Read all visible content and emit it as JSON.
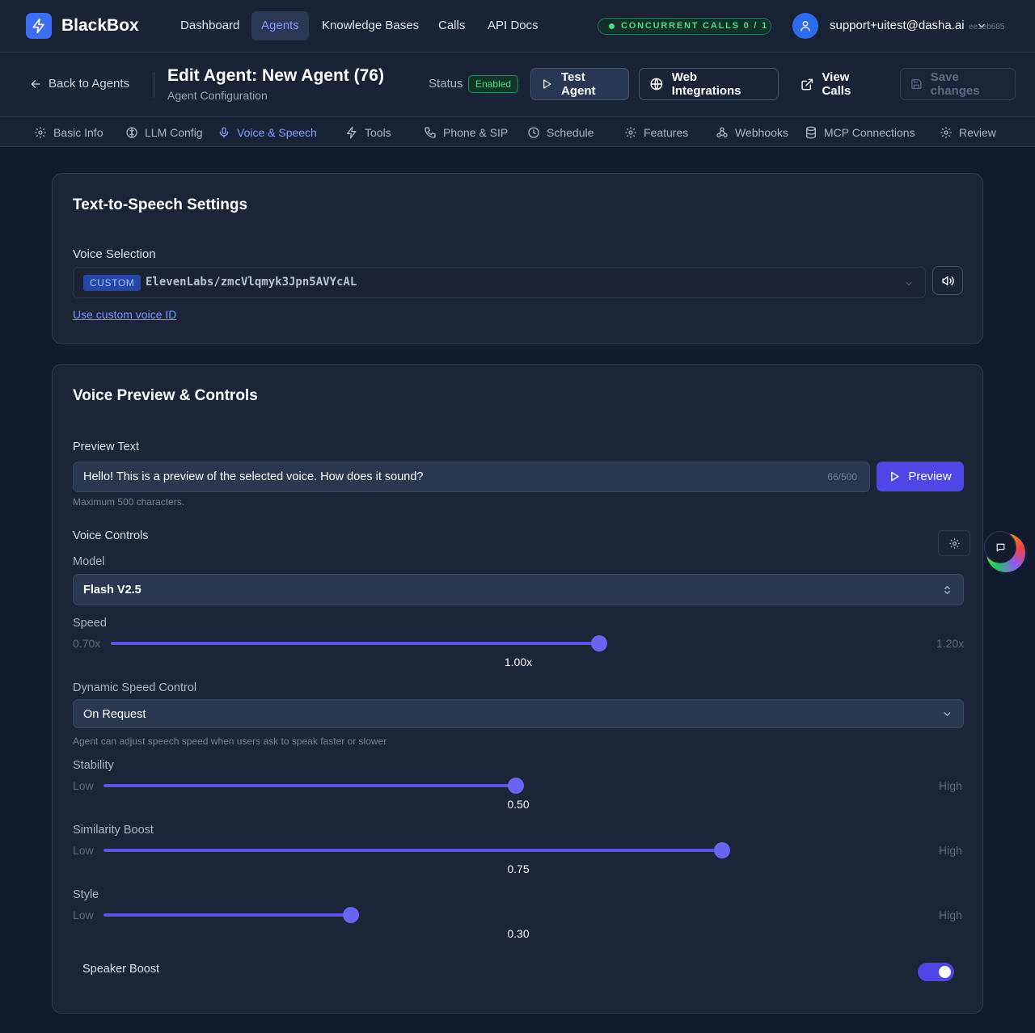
{
  "app": {
    "brand": "BlackBox"
  },
  "nav": {
    "items": [
      {
        "label": "Dashboard",
        "active": false
      },
      {
        "label": "Agents",
        "active": true
      },
      {
        "label": "Knowledge Bases",
        "active": false
      },
      {
        "label": "Calls",
        "active": false
      },
      {
        "label": "API Docs",
        "active": false
      }
    ],
    "concurrent_calls": "CONCURRENT CALLS 0 / 1",
    "user_email": "support+uitest@dasha.ai",
    "user_id": "ee1eb685"
  },
  "header": {
    "back_label": "Back to Agents",
    "title": "Edit Agent: New Agent (76)",
    "subtitle": "Agent Configuration",
    "status_label": "Status",
    "status_value": "Enabled",
    "test_agent": "Test Agent",
    "web_integrations": "Web Integrations",
    "view_calls": "View Calls",
    "save_changes": "Save changes"
  },
  "tabs": [
    {
      "label": "Basic Info",
      "icon": "gear-icon",
      "active": false
    },
    {
      "label": "LLM Config",
      "icon": "brain-icon",
      "active": false
    },
    {
      "label": "Voice & Speech",
      "icon": "microphone-icon",
      "active": true
    },
    {
      "label": "Tools",
      "icon": "bolt-icon",
      "active": false
    },
    {
      "label": "Phone & SIP",
      "icon": "phone-icon",
      "active": false
    },
    {
      "label": "Schedule",
      "icon": "clock-icon",
      "active": false
    },
    {
      "label": "Features",
      "icon": "cog-icon",
      "active": false
    },
    {
      "label": "Webhooks",
      "icon": "webhook-icon",
      "active": false
    },
    {
      "label": "MCP Connections",
      "icon": "database-icon",
      "active": false
    },
    {
      "label": "Review",
      "icon": "settings-icon",
      "active": false
    }
  ],
  "tts": {
    "title": "Text-to-Speech Settings",
    "voice_label": "Voice Selection",
    "voice_badge": "CUSTOM",
    "voice_value": "ElevenLabs/zmcVlqmyk3Jpn5AVYcAL",
    "custom_link": "Use custom voice ID"
  },
  "preview": {
    "title": "Voice Preview & Controls",
    "text_label": "Preview Text",
    "text_value": "Hello! This is a preview of the selected voice. How does it sound?",
    "char_count": "66/500",
    "max_help": "Maximum 500 characters.",
    "preview_button": "Preview",
    "controls_label": "Voice Controls",
    "model_label": "Model",
    "model_value": "Flash V2.5",
    "speed": {
      "label": "Speed",
      "min": "0.70x",
      "max": "1.20x",
      "value": "1.00x",
      "fraction": 0.6
    },
    "dynamic_label": "Dynamic Speed Control",
    "dynamic_value": "On Request",
    "dynamic_help": "Agent can adjust speech speed when users ask to speak faster or slower",
    "stability": {
      "label": "Stability",
      "min": "Low",
      "max": "High",
      "value": "0.50",
      "fraction": 0.5
    },
    "similarity": {
      "label": "Similarity Boost",
      "min": "Low",
      "max": "High",
      "value": "0.75",
      "fraction": 0.75
    },
    "style": {
      "label": "Style",
      "min": "Low",
      "max": "High",
      "value": "0.30",
      "fraction": 0.3
    },
    "speaker_boost_label": "Speaker Boost",
    "speaker_boost_on": true
  },
  "colors": {
    "accent": "#4f46e5",
    "brand": "#3d6df2",
    "success": "#4ade80"
  }
}
